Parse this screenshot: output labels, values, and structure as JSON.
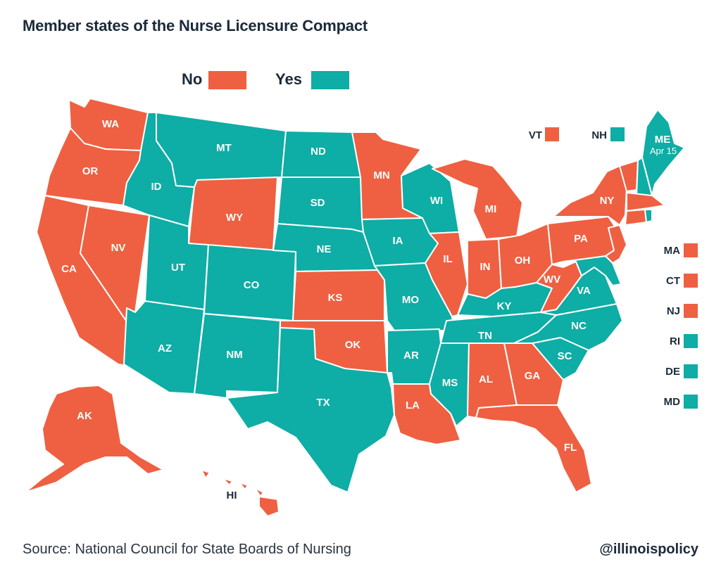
{
  "title": "Member states of the Nurse Licensure Compact",
  "legend": {
    "no_label": "No",
    "yes_label": "Yes"
  },
  "colors": {
    "no": "#ee6041",
    "yes": "#0eada5"
  },
  "states": {
    "WA": {
      "label": "WA",
      "status": "no"
    },
    "OR": {
      "label": "OR",
      "status": "no"
    },
    "CA": {
      "label": "CA",
      "status": "no"
    },
    "NV": {
      "label": "NV",
      "status": "no"
    },
    "ID": {
      "label": "ID",
      "status": "yes"
    },
    "MT": {
      "label": "MT",
      "status": "yes"
    },
    "WY": {
      "label": "WY",
      "status": "no"
    },
    "UT": {
      "label": "UT",
      "status": "yes"
    },
    "AZ": {
      "label": "AZ",
      "status": "yes"
    },
    "CO": {
      "label": "CO",
      "status": "yes"
    },
    "NM": {
      "label": "NM",
      "status": "yes"
    },
    "ND": {
      "label": "ND",
      "status": "yes"
    },
    "SD": {
      "label": "SD",
      "status": "yes"
    },
    "NE": {
      "label": "NE",
      "status": "yes"
    },
    "KS": {
      "label": "KS",
      "status": "no"
    },
    "OK": {
      "label": "OK",
      "status": "no"
    },
    "TX": {
      "label": "TX",
      "status": "yes"
    },
    "MN": {
      "label": "MN",
      "status": "no"
    },
    "IA": {
      "label": "IA",
      "status": "yes"
    },
    "MO": {
      "label": "MO",
      "status": "yes"
    },
    "AR": {
      "label": "AR",
      "status": "yes"
    },
    "LA": {
      "label": "LA",
      "status": "no"
    },
    "WI": {
      "label": "WI",
      "status": "yes"
    },
    "IL": {
      "label": "IL",
      "status": "no"
    },
    "MS": {
      "label": "MS",
      "status": "yes"
    },
    "MI": {
      "label": "MI",
      "status": "no"
    },
    "IN": {
      "label": "IN",
      "status": "no"
    },
    "OH": {
      "label": "OH",
      "status": "no"
    },
    "KY": {
      "label": "KY",
      "status": "yes"
    },
    "TN": {
      "label": "TN",
      "status": "yes"
    },
    "AL": {
      "label": "AL",
      "status": "no"
    },
    "GA": {
      "label": "GA",
      "status": "no"
    },
    "FL": {
      "label": "FL",
      "status": "no"
    },
    "SC": {
      "label": "SC",
      "status": "yes"
    },
    "NC": {
      "label": "NC",
      "status": "yes"
    },
    "VA": {
      "label": "VA",
      "status": "yes"
    },
    "WV": {
      "label": "WV",
      "status": "no"
    },
    "PA": {
      "label": "PA",
      "status": "no"
    },
    "NY": {
      "label": "NY",
      "status": "no"
    },
    "ME": {
      "label": "ME",
      "note": "Apr 15",
      "status": "yes"
    },
    "AK": {
      "label": "AK",
      "status": "no"
    },
    "HI": {
      "label": "HI",
      "status": "no"
    }
  },
  "callouts": {
    "VT": {
      "label": "VT",
      "status": "no"
    },
    "NH": {
      "label": "NH",
      "status": "yes"
    },
    "MA": {
      "label": "MA",
      "status": "no"
    },
    "CT": {
      "label": "CT",
      "status": "no"
    },
    "NJ": {
      "label": "NJ",
      "status": "no"
    },
    "RI": {
      "label": "RI",
      "status": "yes"
    },
    "DE": {
      "label": "DE",
      "status": "yes"
    },
    "MD": {
      "label": "MD",
      "status": "yes"
    }
  },
  "source": "Source: National Council for State Boards of Nursing",
  "handle": "@illinoispolicy"
}
